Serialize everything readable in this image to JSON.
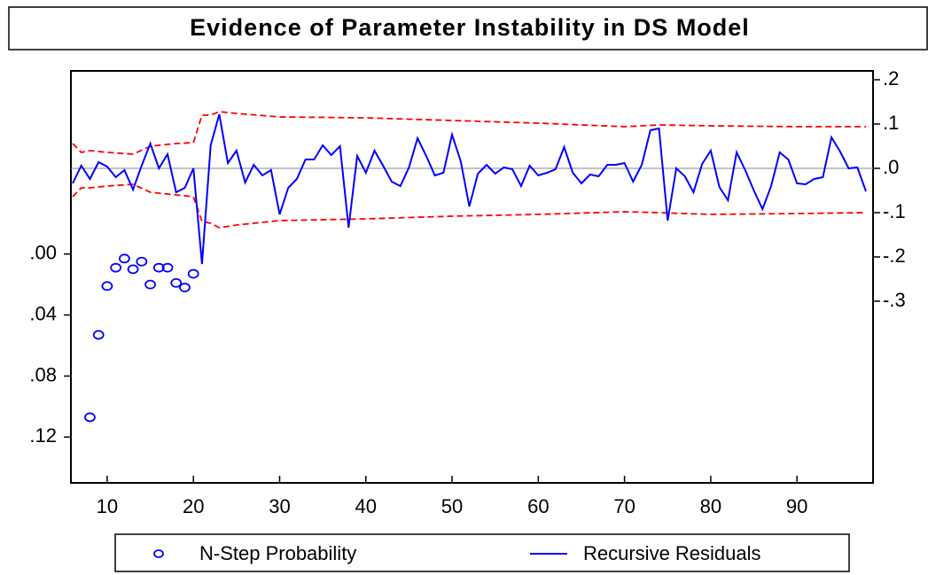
{
  "chart_data": {
    "type": "line",
    "title": "Evidence of Parameter Instability in DS Model",
    "xlim": [
      6,
      98
    ],
    "xticks": [
      10,
      20,
      30,
      40,
      50,
      60,
      70,
      80,
      90
    ],
    "ylim": [
      -0.12,
      0.15
    ],
    "y_reversed": true,
    "yticks": [
      {
        "value": 0,
        "label": ".00"
      },
      {
        "value": 0.04,
        "label": ".04"
      },
      {
        "value": 0.08,
        "label": ".08"
      },
      {
        "value": 0.12,
        "label": ".12"
      }
    ],
    "y2lim": [
      -0.71,
      0.22
    ],
    "y2ticks": [
      {
        "value": 0.2,
        "label": ".2"
      },
      {
        "value": 0.1,
        "label": ".1"
      },
      {
        "value": 0,
        "label": ".0"
      },
      {
        "value": -0.1,
        "label": "-.1"
      },
      {
        "value": -0.2,
        "label": "-.2"
      },
      {
        "value": -0.3,
        "label": "-.3"
      }
    ],
    "zero_line": true,
    "series": [
      {
        "name": "N-Step Probability",
        "color": "#0000ff",
        "marker": "circle",
        "x": [
          8,
          9,
          10,
          11,
          12,
          13,
          14,
          15,
          16,
          17,
          18,
          19,
          20
        ],
        "values": [
          0.107,
          0.053,
          0.021,
          0.009,
          0.003,
          0.01,
          0.005,
          0.02,
          0.009,
          0.009,
          0.019,
          0.022,
          0.013
        ]
      },
      {
        "name": "Recursive Residuals",
        "color": "#0000ff",
        "axis": "y2",
        "x": [
          6,
          7,
          8,
          9,
          10,
          11,
          12,
          13,
          14,
          15,
          16,
          17,
          18,
          19,
          20,
          21,
          22,
          23,
          24,
          25,
          26,
          27,
          28,
          29,
          30,
          31,
          32,
          33,
          34,
          35,
          36,
          37,
          38,
          39,
          40,
          41,
          42,
          43,
          44,
          45,
          46,
          47,
          48,
          49,
          50,
          51,
          52,
          53,
          54,
          55,
          56,
          57,
          58,
          59,
          60,
          61,
          62,
          63,
          64,
          65,
          66,
          67,
          68,
          69,
          70,
          71,
          72,
          73,
          74,
          75,
          76,
          77,
          78,
          79,
          80,
          81,
          82,
          83,
          84,
          85,
          86,
          87,
          88,
          89,
          90,
          91,
          92,
          93,
          94,
          95,
          96,
          97,
          98
        ],
        "values": [
          -0.034,
          0.006,
          -0.024,
          0.014,
          0.004,
          -0.02,
          -0.004,
          -0.048,
          0.006,
          0.056,
          0,
          0.032,
          -0.054,
          -0.044,
          0,
          -0.216,
          0.052,
          0.122,
          0.012,
          0.04,
          -0.032,
          0.008,
          -0.016,
          -0.004,
          -0.104,
          -0.044,
          -0.024,
          0.02,
          0.02,
          0.052,
          0.03,
          0.05,
          -0.134,
          0.028,
          -0.01,
          0.04,
          0.006,
          -0.03,
          -0.04,
          0.002,
          0.068,
          0.028,
          -0.016,
          -0.01,
          0.076,
          0.016,
          -0.086,
          -0.012,
          0.008,
          -0.012,
          0.002,
          -0.002,
          -0.04,
          0.006,
          -0.016,
          -0.01,
          -0.002,
          0.048,
          -0.01,
          -0.034,
          -0.014,
          -0.018,
          0.008,
          0.008,
          0.012,
          -0.03,
          0.008,
          0.086,
          0.09,
          -0.118,
          0,
          -0.018,
          -0.054,
          0.01,
          0.04,
          -0.042,
          -0.072,
          0.036,
          -0.004,
          -0.05,
          -0.092,
          -0.04,
          0.036,
          0.02,
          -0.034,
          -0.036,
          -0.024,
          -0.02,
          0.07,
          0.038,
          0,
          0.002,
          -0.052
        ]
      }
    ],
    "bands": {
      "color": "#ff0000",
      "axis": "y2",
      "x": [
        6,
        7,
        8,
        10,
        13,
        15,
        18,
        20,
        21,
        22,
        23,
        25,
        30,
        40,
        50,
        60,
        70,
        74,
        80,
        90,
        98
      ],
      "upper": [
        0.056,
        0.036,
        0.04,
        0.036,
        0.032,
        0.05,
        0.056,
        0.058,
        0.12,
        0.12,
        0.128,
        0.124,
        0.116,
        0.114,
        0.108,
        0.102,
        0.094,
        0.098,
        0.096,
        0.094,
        0.094
      ],
      "lower": [
        -0.064,
        -0.044,
        -0.044,
        -0.04,
        -0.036,
        -0.054,
        -0.06,
        -0.064,
        -0.12,
        -0.124,
        -0.134,
        -0.128,
        -0.118,
        -0.114,
        -0.108,
        -0.104,
        -0.098,
        -0.1,
        -0.104,
        -0.102,
        -0.1
      ]
    }
  }
}
